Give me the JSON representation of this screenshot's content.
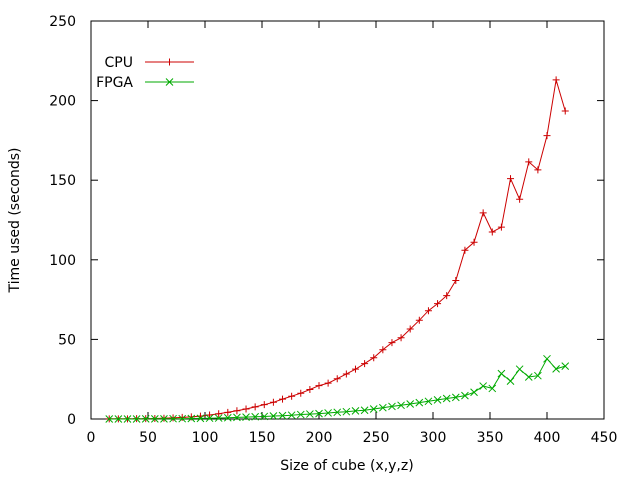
{
  "chart_data": {
    "type": "line",
    "title": "",
    "xlabel": "Size of cube (x,y,z)",
    "ylabel": "Time used (seconds)",
    "xlim": [
      0,
      450
    ],
    "ylim": [
      0,
      250
    ],
    "xticks": [
      0,
      50,
      100,
      150,
      200,
      250,
      300,
      350,
      400,
      450
    ],
    "yticks": [
      0,
      50,
      100,
      150,
      200,
      250
    ],
    "grid": false,
    "legend_position": "top-left",
    "series": [
      {
        "name": "CPU",
        "color": "#cc0000",
        "marker": "plus",
        "x": [
          16,
          24,
          32,
          40,
          48,
          56,
          64,
          72,
          80,
          88,
          96,
          104,
          112,
          120,
          128,
          136,
          144,
          152,
          160,
          168,
          176,
          184,
          192,
          200,
          208,
          216,
          224,
          232,
          240,
          248,
          256,
          264,
          272,
          280,
          288,
          296,
          304,
          312,
          320,
          328,
          336,
          344,
          352,
          360,
          368,
          376,
          384,
          392,
          400,
          408,
          416
        ],
        "y": [
          0.1,
          0.1,
          0.1,
          0.2,
          0.2,
          0.3,
          0.5,
          0.7,
          1,
          1.3,
          1.8,
          2.5,
          3.3,
          4.2,
          5.2,
          6.3,
          7.6,
          9,
          10.5,
          12.5,
          14.3,
          16.2,
          18.5,
          21,
          22.5,
          25.3,
          28.3,
          31.3,
          34.8,
          38.5,
          43.5,
          48,
          51,
          56.5,
          62,
          68,
          72.5,
          77.5,
          87,
          106,
          111,
          129.5,
          117.5,
          120.5,
          151,
          138,
          161.5,
          156.5,
          178,
          213,
          193.5
        ]
      },
      {
        "name": "FPGA",
        "color": "#00aa00",
        "marker": "cross",
        "x": [
          16,
          24,
          32,
          40,
          48,
          56,
          64,
          72,
          80,
          88,
          96,
          104,
          112,
          120,
          128,
          136,
          144,
          152,
          160,
          168,
          176,
          184,
          192,
          200,
          208,
          216,
          224,
          232,
          240,
          248,
          256,
          264,
          272,
          280,
          288,
          296,
          304,
          312,
          320,
          328,
          336,
          344,
          352,
          360,
          368,
          376,
          384,
          392,
          400,
          408,
          416
        ],
        "y": [
          0,
          0,
          0,
          0,
          0.1,
          0.1,
          0.1,
          0.2,
          0.2,
          0.3,
          0.4,
          0.5,
          0.6,
          0.8,
          1,
          1.2,
          1.4,
          1.6,
          1.9,
          2.1,
          2.4,
          2.8,
          3.1,
          3.4,
          3.8,
          4.2,
          4.6,
          5.1,
          5.5,
          6.3,
          7.1,
          7.9,
          8.6,
          9.4,
          10.3,
          11.1,
          12,
          12.9,
          13.6,
          14.7,
          16.8,
          20.7,
          19.2,
          28.5,
          23.8,
          31.3,
          26.4,
          27.2,
          37.8,
          31.5,
          33.2
        ]
      }
    ]
  }
}
